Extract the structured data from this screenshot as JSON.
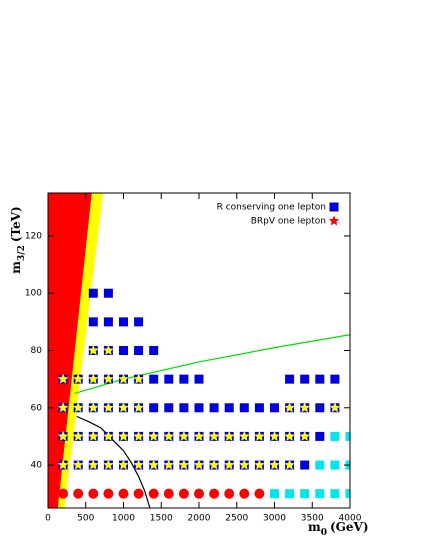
{
  "chart_data": {
    "type": "scatter",
    "x_label": {
      "main": "m",
      "sub": "0",
      "unit": "(GeV)"
    },
    "y_label": {
      "main": "m",
      "sub": "3/2",
      "unit": "(TeV)"
    },
    "xlim": [
      0,
      4000
    ],
    "ylim": [
      25,
      135
    ],
    "xticks": [
      0,
      500,
      1000,
      1500,
      2000,
      2500,
      3000,
      3500,
      4000
    ],
    "yticks": [
      40,
      60,
      80,
      100,
      120
    ],
    "legend": "upper right",
    "series": [
      {
        "type": "area",
        "color": "#ffff00",
        "x": [
          220,
          730
        ],
        "y": [
          25,
          135
        ]
      },
      {
        "type": "area",
        "color": "#ff0000",
        "x": [
          130,
          580
        ],
        "y": [
          25,
          135
        ]
      },
      {
        "type": "line",
        "color": "#00dd00",
        "x": [
          350,
          1000,
          2000,
          3000,
          4000
        ],
        "y": [
          65,
          70,
          76,
          81,
          85.5
        ]
      },
      {
        "type": "line",
        "color": "#000000",
        "x": [
          380,
          550,
          700,
          850,
          1000,
          1100,
          1200,
          1280,
          1350
        ],
        "y": [
          57,
          55,
          53,
          49,
          45,
          41,
          36,
          31,
          25
        ]
      },
      {
        "type": "scatter",
        "marker": "square",
        "name": "R conserving one lepton",
        "color": "#0000dd",
        "x": [
          600,
          800,
          600,
          800,
          1000,
          1200,
          600,
          800,
          1000,
          1200,
          1400,
          200,
          400,
          600,
          800,
          1000,
          1200,
          1400,
          1600,
          1800,
          2000,
          3200,
          3400,
          3600,
          3800,
          200,
          400,
          600,
          800,
          1000,
          1200,
          1400,
          1600,
          1800,
          2000,
          2200,
          2400,
          2600,
          2800,
          3000,
          3200,
          3400,
          3600,
          3800,
          200,
          400,
          600,
          800,
          1000,
          1200,
          1400,
          1600,
          1800,
          2000,
          2200,
          2400,
          2600,
          2800,
          3000,
          3200,
          3400,
          3600,
          200,
          400,
          600,
          800,
          1000,
          1200,
          1400,
          1600,
          1800,
          2000,
          2200,
          2400,
          2600,
          2800,
          3000,
          3200,
          3400
        ],
        "y": [
          100,
          100,
          90,
          90,
          90,
          90,
          80,
          80,
          80,
          80,
          80,
          70,
          70,
          70,
          70,
          70,
          70,
          70,
          70,
          70,
          70,
          70,
          70,
          70,
          70,
          60,
          60,
          60,
          60,
          60,
          60,
          60,
          60,
          60,
          60,
          60,
          60,
          60,
          60,
          60,
          60,
          60,
          60,
          60,
          50,
          50,
          50,
          50,
          50,
          50,
          50,
          50,
          50,
          50,
          50,
          50,
          50,
          50,
          50,
          50,
          50,
          50,
          40,
          40,
          40,
          40,
          40,
          40,
          40,
          40,
          40,
          40,
          40,
          40,
          40,
          40,
          40,
          40,
          40
        ]
      },
      {
        "type": "scatter",
        "marker": "square",
        "color": "#00e5ee",
        "x": [
          3800,
          4000,
          3600,
          3800,
          4000,
          3000,
          3200,
          3400,
          3600,
          3800,
          4000
        ],
        "y": [
          50,
          50,
          40,
          40,
          40,
          30,
          30,
          30,
          30,
          30,
          30
        ]
      },
      {
        "type": "scatter",
        "marker": "circle",
        "color": "#ff0000",
        "x": [
          200,
          400,
          600,
          800,
          1000,
          1200,
          1400,
          1600,
          1800,
          2000,
          2200,
          2400,
          2600,
          2800
        ],
        "y": [
          30,
          30,
          30,
          30,
          30,
          30,
          30,
          30,
          30,
          30,
          30,
          30,
          30,
          30
        ]
      },
      {
        "type": "scatter",
        "marker": "star",
        "name": "BRpV one lepton",
        "color": "#ffff00",
        "legend_color": "#ff0000",
        "x": [
          600,
          800,
          200,
          400,
          600,
          800,
          1000,
          1200,
          200,
          400,
          600,
          800,
          1000,
          1200,
          3200,
          3400,
          3800,
          200,
          400,
          600,
          800,
          1000,
          1200,
          1400,
          1600,
          1800,
          2000,
          2200,
          2400,
          2600,
          2800,
          3000,
          3200,
          3400,
          200,
          400,
          600,
          800,
          1000,
          1200,
          1400,
          1600,
          1800,
          2000,
          2200,
          2400,
          2600,
          2800,
          3000,
          3200
        ],
        "y": [
          80,
          80,
          70,
          70,
          70,
          70,
          70,
          70,
          60,
          60,
          60,
          60,
          60,
          60,
          60,
          60,
          60,
          50,
          50,
          50,
          50,
          50,
          50,
          50,
          50,
          50,
          50,
          50,
          50,
          50,
          50,
          50,
          50,
          50,
          40,
          40,
          40,
          40,
          40,
          40,
          40,
          40,
          40,
          40,
          40,
          40,
          40,
          40,
          40,
          40
        ]
      }
    ]
  }
}
